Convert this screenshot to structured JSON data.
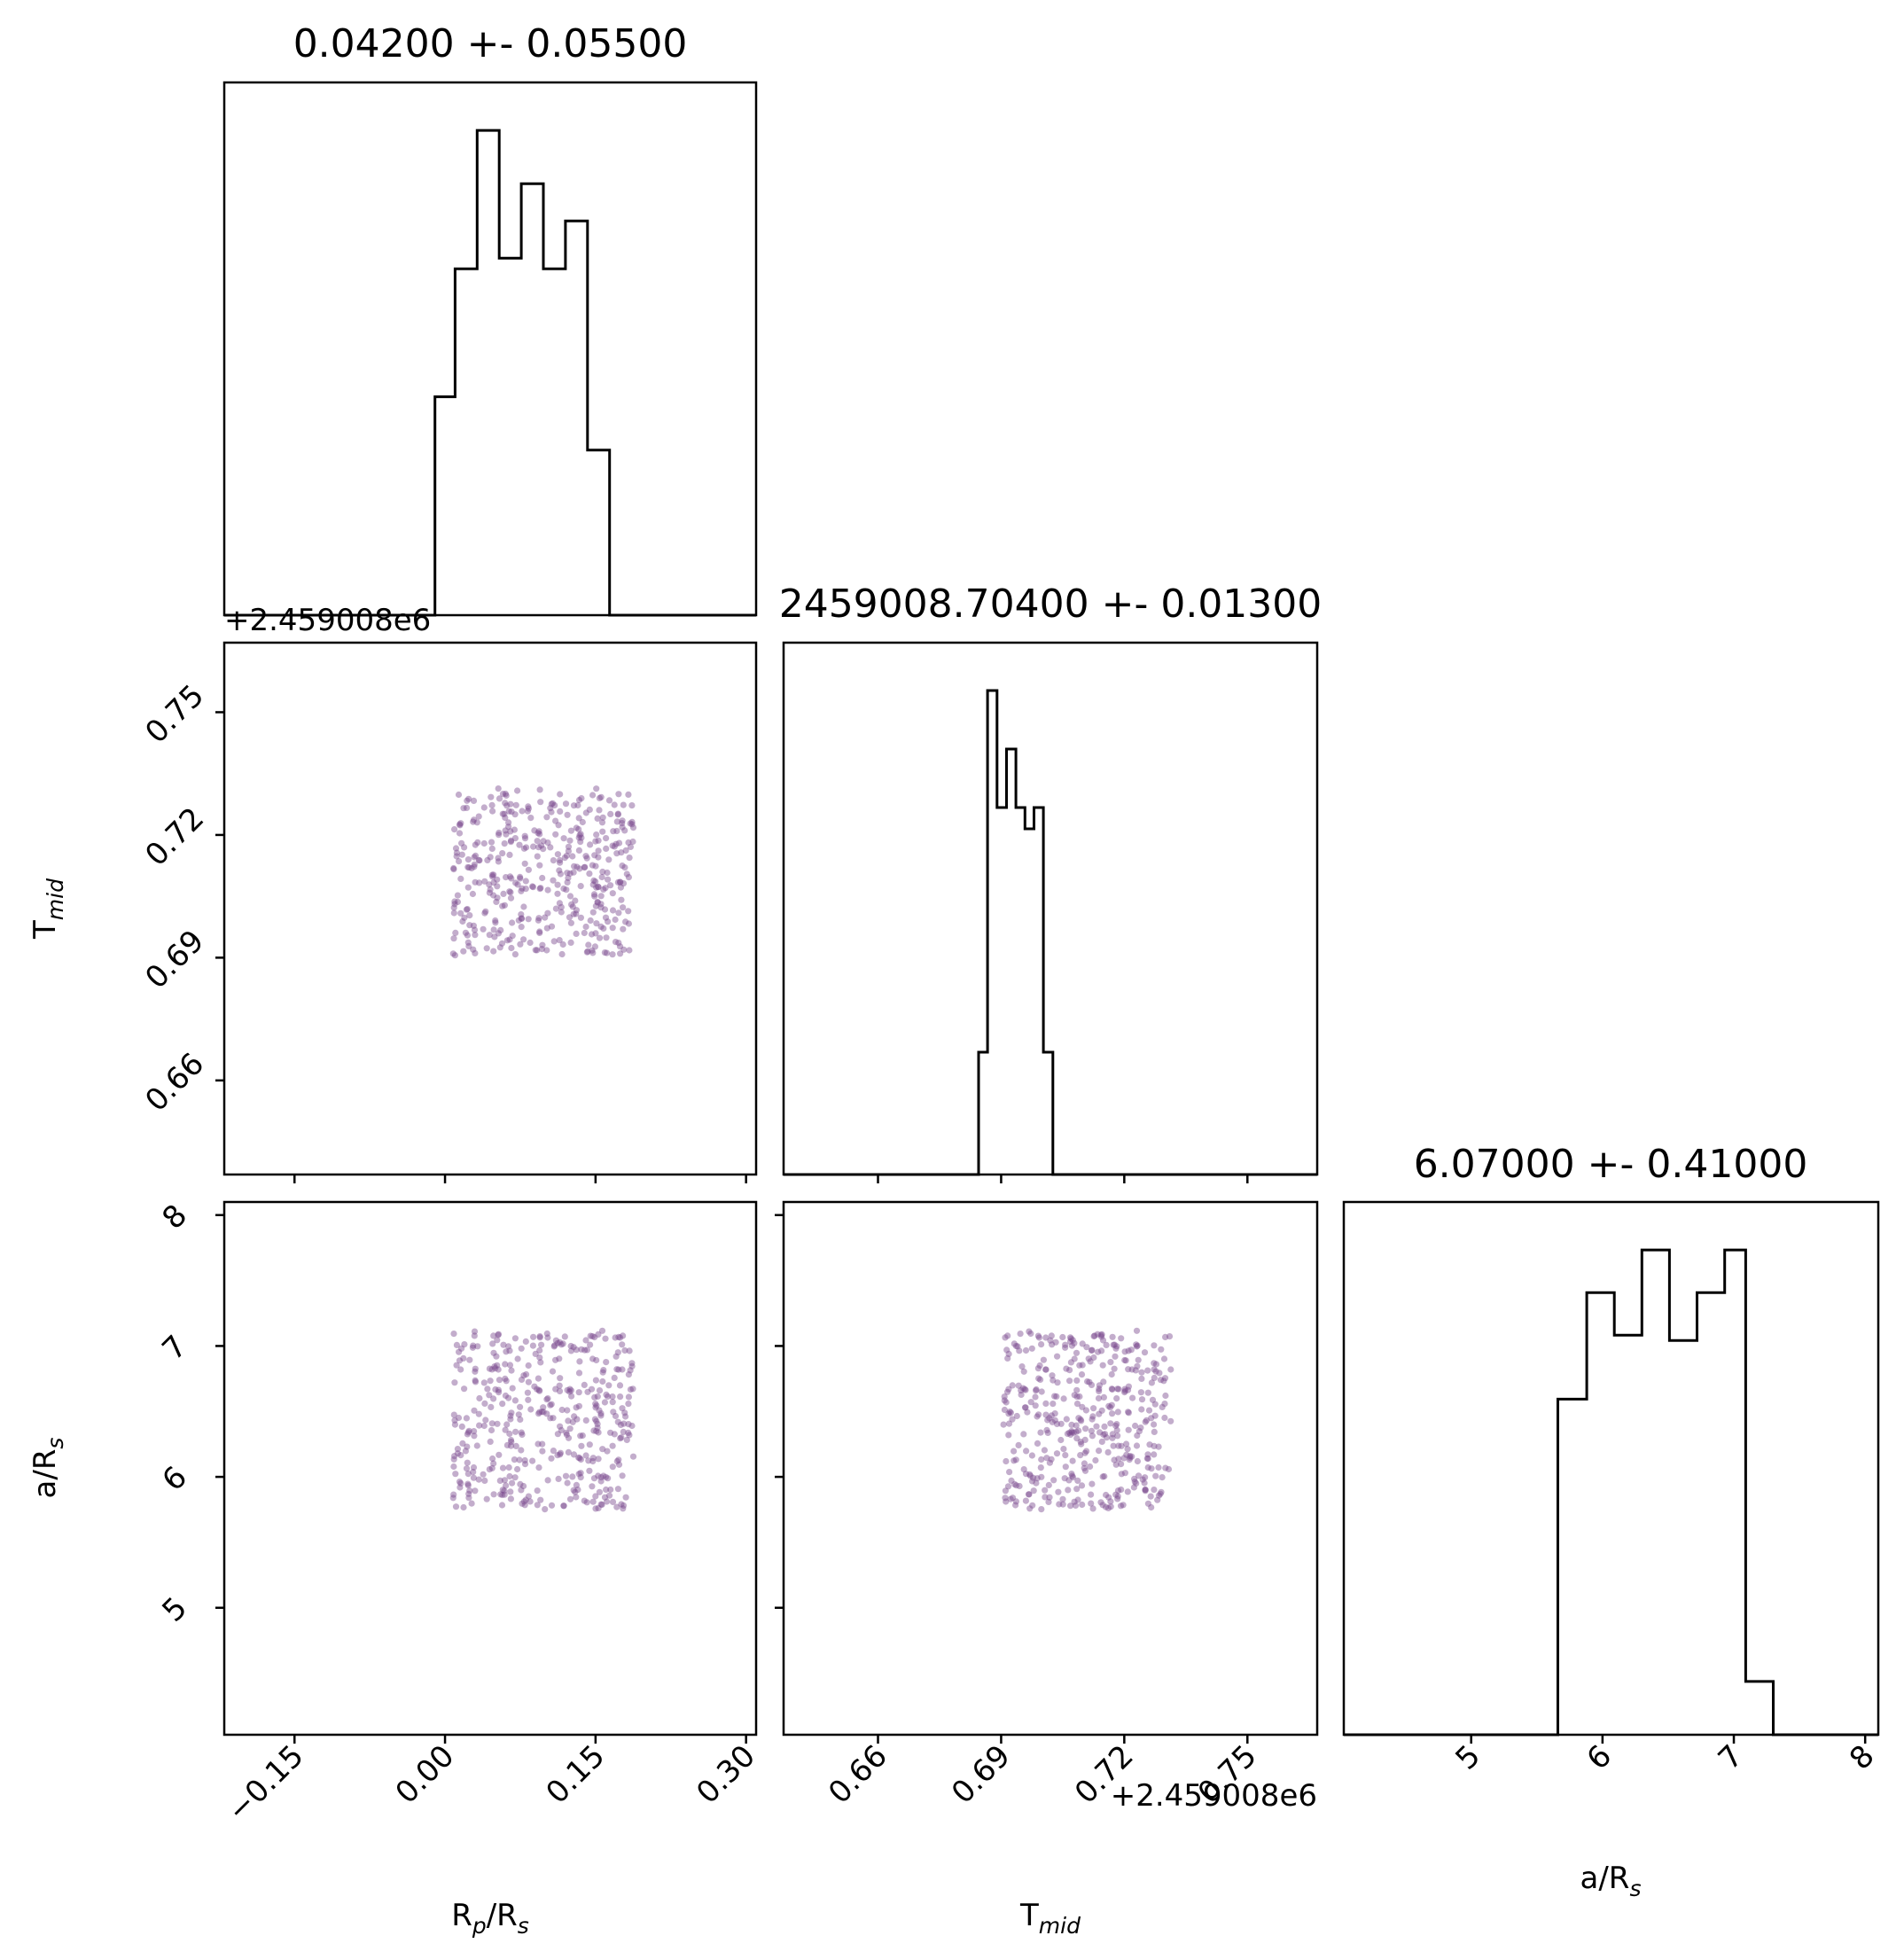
{
  "chart_data": {
    "type": "corner",
    "parameters": [
      {
        "key": "rp",
        "label_main": "R",
        "label_sub1": "p",
        "label_rest": "/R",
        "label_sub2": "s",
        "range": [
          -0.22,
          0.31
        ],
        "ticks": [
          -0.15,
          0.0,
          0.15,
          0.3
        ],
        "tick_labels": [
          "−0.15",
          "0.00",
          "0.15",
          "0.30"
        ]
      },
      {
        "key": "tmid",
        "label_main": "T",
        "label_sub1": "mid",
        "range": [
          0.637,
          0.767
        ],
        "ticks": [
          0.66,
          0.69,
          0.72,
          0.75
        ],
        "tick_labels": [
          "0.66",
          "0.69",
          "0.72",
          "0.75"
        ],
        "offset_label": "+2.459008e6"
      },
      {
        "key": "ars",
        "label_main": "a/R",
        "label_sub1": "s",
        "range": [
          4.03,
          8.1
        ],
        "ticks": [
          5,
          6,
          7,
          8
        ],
        "tick_labels": [
          "5",
          "6",
          "7",
          "8"
        ]
      }
    ],
    "titles": [
      "0.04200 +- 0.05500",
      "2459008.70400 +- 0.01300",
      "6.07000 +- 0.41000"
    ],
    "histograms": [
      {
        "param": "rp",
        "edges": [
          -0.22,
          -0.01,
          0.01,
          0.032,
          0.054,
          0.076,
          0.098,
          0.12,
          0.142,
          0.164,
          0.186,
          0.208,
          0.31
        ],
        "counts": [
          0,
          0.41,
          0.65,
          0.91,
          0.67,
          0.81,
          0.65,
          0.74,
          0.31,
          0,
          0,
          0
        ]
      },
      {
        "param": "tmid",
        "edges": [
          0.637,
          0.6845,
          0.6867,
          0.689,
          0.6913,
          0.6936,
          0.6958,
          0.698,
          0.7003,
          0.7026,
          0.7049,
          0.7072,
          0.767
        ],
        "counts": [
          0,
          0.23,
          0.91,
          0.69,
          0.8,
          0.69,
          0.65,
          0.69,
          0.23,
          0,
          0,
          0
        ]
      },
      {
        "param": "ars",
        "edges": [
          4.03,
          5.66,
          5.88,
          6.09,
          6.3,
          6.51,
          6.72,
          6.93,
          7.09,
          7.3,
          8.1
        ],
        "counts": [
          0,
          0.63,
          0.83,
          0.75,
          0.91,
          0.74,
          0.83,
          0.91,
          0.1,
          0
        ]
      }
    ],
    "scatter": {
      "n_points": 420,
      "rp_range": [
        0.008,
        0.188
      ],
      "tmid_range": [
        0.6905,
        0.7315
      ],
      "ars_range": [
        5.75,
        7.12
      ],
      "point_color": "#7b4a8d",
      "point_opacity": 0.45
    },
    "colors": {
      "histogram_line": "#000000",
      "axes": "#000000",
      "background": "#ffffff"
    }
  }
}
